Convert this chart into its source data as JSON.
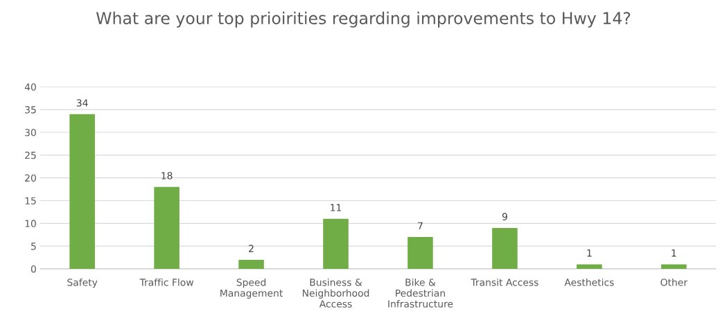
{
  "chart_data": {
    "type": "bar",
    "title": "What are your top prioirities regarding improvements to Hwy 14?",
    "categories": [
      "Safety",
      "Traffic Flow",
      "Speed\nManagement",
      "Business &\nNeighborhood\nAccess",
      "Bike &\nPedestrian\nInfrastructure",
      "Transit Access",
      "Aesthetics",
      "Other"
    ],
    "values": [
      34,
      18,
      2,
      11,
      7,
      9,
      1,
      1
    ],
    "color": "#70ad47",
    "ylim": [
      0,
      40
    ],
    "yticks": [
      0,
      5,
      10,
      15,
      20,
      25,
      30,
      35,
      40
    ],
    "grid": "y",
    "data_labels": true,
    "legend": false
  }
}
